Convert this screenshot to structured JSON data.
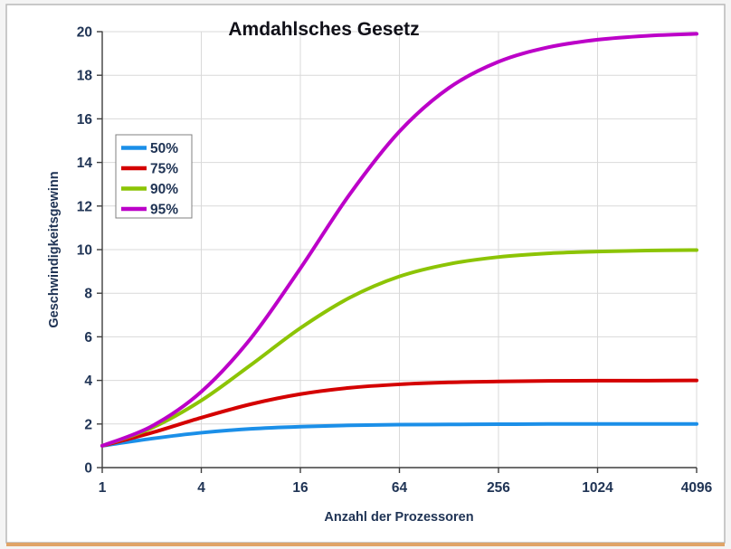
{
  "frame": {
    "background": "#f4f4f4",
    "border_color": "#b9b9b9",
    "bottom_bar_color": "#e0a468"
  },
  "chart_data": {
    "type": "line",
    "title": "Amdahlsches Gesetz",
    "xlabel": "Anzahl der Prozessoren",
    "ylabel": "Geschwindigkeitsgewinn",
    "x_scale": "log2",
    "xlim": [
      1,
      4096
    ],
    "ylim": [
      0,
      20
    ],
    "grid": true,
    "legend_position": "upper-left-inside",
    "x": [
      1,
      2,
      4,
      8,
      16,
      32,
      64,
      128,
      256,
      512,
      1024,
      2048,
      4096
    ],
    "x_ticks": [
      1,
      4,
      16,
      64,
      256,
      1024,
      4096
    ],
    "y_ticks": [
      0,
      2,
      4,
      6,
      8,
      10,
      12,
      14,
      16,
      18,
      20
    ],
    "series": [
      {
        "name": "50%",
        "parallel_fraction": 0.5,
        "color": "#1b8fe8",
        "values": [
          1,
          1.33,
          1.6,
          1.78,
          1.88,
          1.94,
          1.97,
          1.98,
          1.99,
          2.0,
          2.0,
          2.0,
          2.0
        ]
      },
      {
        "name": "75%",
        "parallel_fraction": 0.75,
        "color": "#d40000",
        "values": [
          1,
          1.6,
          2.29,
          2.91,
          3.37,
          3.66,
          3.82,
          3.91,
          3.95,
          3.98,
          3.99,
          3.99,
          4.0
        ]
      },
      {
        "name": "90%",
        "parallel_fraction": 0.9,
        "color": "#8cc405",
        "values": [
          1,
          1.82,
          3.08,
          4.71,
          6.4,
          7.8,
          8.77,
          9.34,
          9.66,
          9.83,
          9.91,
          9.96,
          9.98
        ]
      },
      {
        "name": "95%",
        "parallel_fraction": 0.95,
        "color": "#bc00c8",
        "values": [
          1,
          1.9,
          3.48,
          5.93,
          9.14,
          12.55,
          15.42,
          17.42,
          18.62,
          19.28,
          19.63,
          19.81,
          19.9
        ]
      }
    ],
    "grid_color": "#d9d9d9",
    "axis_color": "#3f3f3f",
    "text_color": "#203455",
    "title_color": "#101018",
    "legend_border_color": "#808080"
  }
}
